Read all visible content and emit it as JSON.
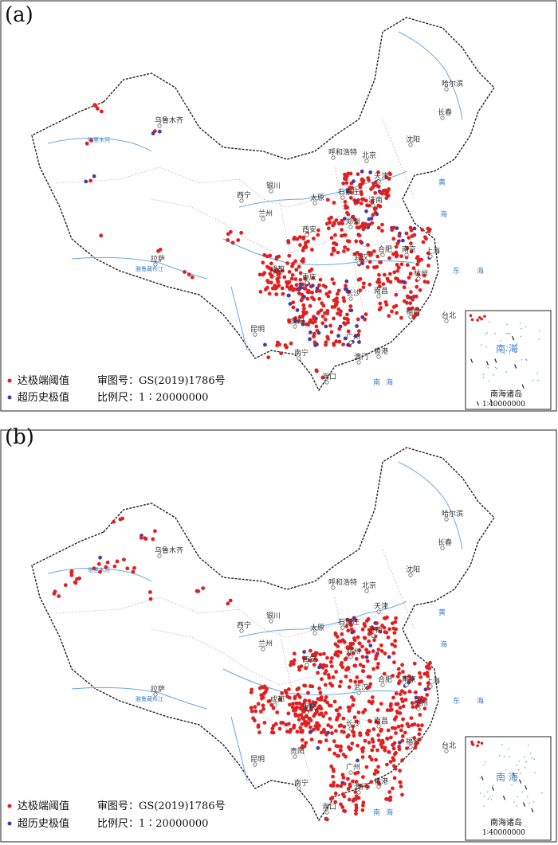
{
  "panels": [
    {
      "label": "(a)",
      "legend": {
        "extreme_threshold": "达极端阈值",
        "historical_extreme": "超历史极值",
        "review_number": "审图号：GS(2019)1786号",
        "scale": "比例尺：1∶20000000"
      },
      "inset": {
        "title": "南海诸岛",
        "scale": "1∶40000000",
        "sea": "南 海"
      },
      "cities": [
        "乌鲁木齐",
        "哈尔滨",
        "长春",
        "沈阳",
        "呼和浩特",
        "北京",
        "天津",
        "银川",
        "西宁",
        "兰州",
        "西安",
        "郑州",
        "济南",
        "拉萨",
        "成都",
        "重庆",
        "武汉",
        "合肥",
        "南京",
        "上海",
        "杭州",
        "长沙",
        "南昌",
        "福州",
        "台北",
        "贵阳",
        "昆明",
        "南宁",
        "广州",
        "澳门",
        "香港",
        "海口",
        "石家庄",
        "太原"
      ],
      "seas": [
        "黄",
        "海",
        "东",
        "海",
        "南",
        "海"
      ],
      "colors": {
        "extreme": "#e02020",
        "historical": "#4a3aa0",
        "water": "#6aa9e0",
        "border": "#222222"
      }
    },
    {
      "label": "(b)",
      "legend": {
        "extreme_threshold": "达极端阈值",
        "historical_extreme": "超历史极值",
        "review_number": "审图号：GS(2019)1786号",
        "scale": "比例尺：1∶20000000"
      },
      "inset": {
        "title": "南海诸岛",
        "scale": "1∶40000000",
        "sea": "南 海"
      },
      "cities": [
        "乌鲁木齐",
        "哈尔滨",
        "长春",
        "沈阳",
        "呼和浩特",
        "北京",
        "天津",
        "银川",
        "西宁",
        "兰州",
        "西安",
        "郑州",
        "济南",
        "拉萨",
        "成都",
        "重庆",
        "武汉",
        "合肥",
        "南京",
        "上海",
        "杭州",
        "长沙",
        "南昌",
        "福州",
        "台北",
        "贵阳",
        "昆明",
        "南宁",
        "广州",
        "澳门",
        "香港",
        "海口",
        "石家庄",
        "太原"
      ],
      "seas": [
        "黄",
        "海",
        "东",
        "海",
        "南",
        "海"
      ],
      "colors": {
        "extreme": "#e02020",
        "historical": "#4a3aa0",
        "water": "#6aa9e0",
        "border": "#222222"
      }
    }
  ]
}
